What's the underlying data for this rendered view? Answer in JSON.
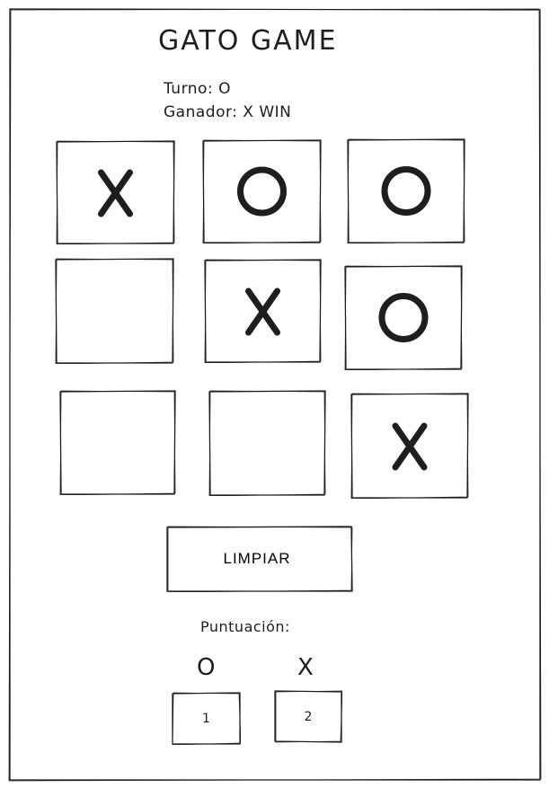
{
  "title": "GATO GAME",
  "status": {
    "turn_text": "Turno: O",
    "winner_text": "Ganador: X WIN"
  },
  "board": {
    "cells": [
      "X",
      "O",
      "O",
      "",
      "X",
      "O",
      "",
      "",
      "X"
    ]
  },
  "clear_button": {
    "label": "LIMPIAR"
  },
  "score": {
    "title": "Puntuación:",
    "o_label": "O",
    "x_label": "X",
    "o_value": "1",
    "x_value": "2"
  }
}
